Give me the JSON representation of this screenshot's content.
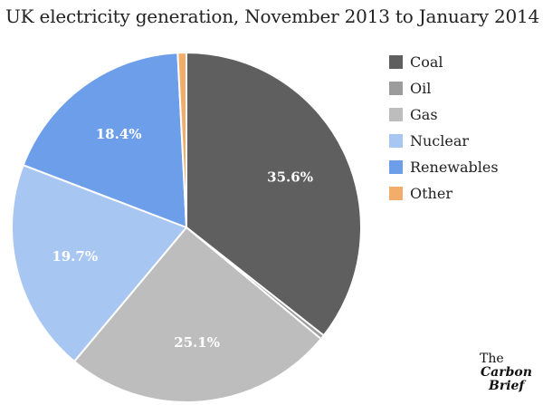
{
  "title": "UK electricity generation, November 2013 to January 2014",
  "chart_data": {
    "type": "pie",
    "title": "UK electricity generation, November 2013 to January 2014",
    "slices": [
      {
        "name": "Coal",
        "value": 35.6,
        "label": "35.6%",
        "color": "#5f5f5f"
      },
      {
        "name": "Oil",
        "value": 0.4,
        "label": "",
        "color": "#9c9c9c"
      },
      {
        "name": "Gas",
        "value": 25.1,
        "label": "25.1%",
        "color": "#bdbdbd"
      },
      {
        "name": "Nuclear",
        "value": 19.7,
        "label": "19.7%",
        "color": "#a8c6f2"
      },
      {
        "name": "Renewables",
        "value": 18.4,
        "label": "18.4%",
        "color": "#6d9eea"
      },
      {
        "name": "Other",
        "value": 0.8,
        "label": "",
        "color": "#f3ad6a"
      }
    ],
    "legend": [
      "Coal",
      "Oil",
      "Gas",
      "Nuclear",
      "Renewables",
      "Other"
    ],
    "legend_position": "right"
  },
  "brand": {
    "line1": "The",
    "line2": "Carbon",
    "line3": "Brief"
  }
}
